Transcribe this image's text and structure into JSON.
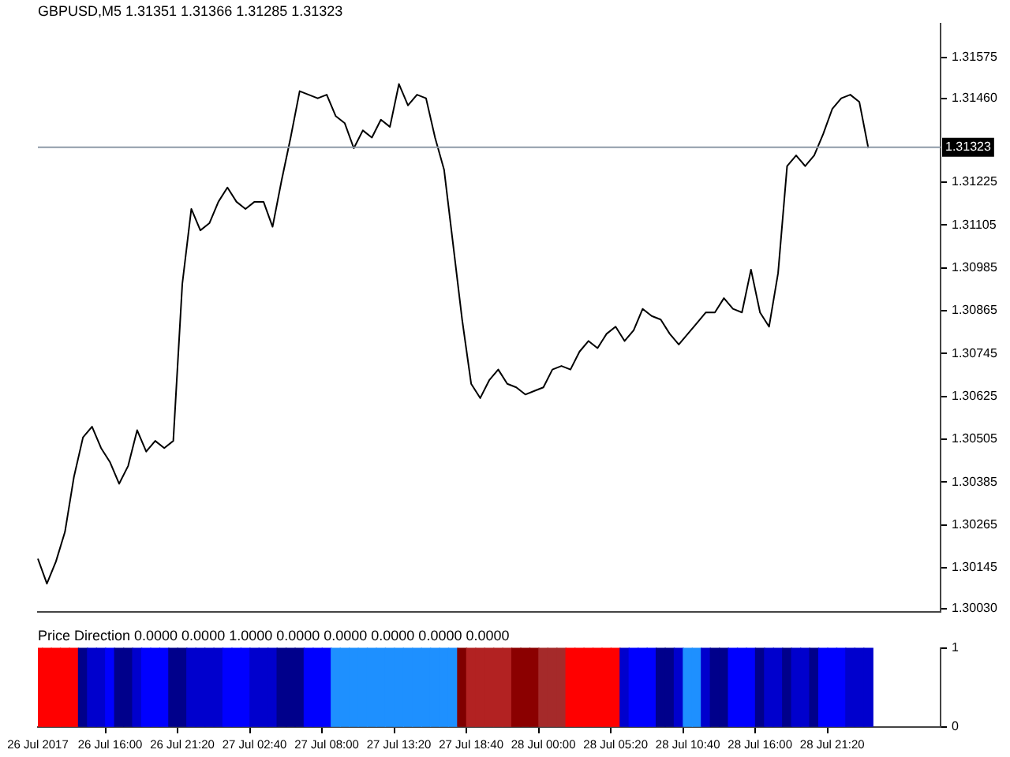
{
  "chart_data": [
    {
      "type": "line",
      "title": "GBPUSD,M5 1.31351 1.31366 1.31285 1.31323",
      "ylim": [
        1.3002,
        1.3167
      ],
      "yticks": [
        1.31575,
        {
          "value": 1.3146,
          "label": "1.31460"
        },
        1.31225,
        1.31105,
        1.30985,
        1.30865,
        1.30745,
        1.30625,
        1.30505,
        1.30385,
        1.30265,
        1.30145,
        {
          "value": 1.3003,
          "label": "1.30030"
        }
      ],
      "grid": false,
      "legend": false,
      "marker": "none",
      "categories": [
        null,
        null,
        null,
        null,
        null,
        null,
        null,
        null,
        null,
        null,
        null,
        null,
        null,
        null,
        null,
        null,
        null,
        null,
        null,
        null,
        null,
        null,
        null,
        null,
        null,
        null,
        null,
        null,
        null,
        null,
        null,
        null,
        null,
        null,
        null,
        null,
        null,
        null,
        null,
        null,
        null,
        null,
        null,
        null,
        null,
        null,
        null,
        null,
        null,
        null,
        null,
        null,
        null,
        null,
        null,
        null,
        null,
        null,
        null,
        null,
        null,
        null,
        null,
        null,
        null,
        null,
        null,
        null,
        null,
        null,
        null,
        null,
        null,
        null,
        null,
        null,
        null,
        null,
        null,
        null,
        null,
        null,
        null,
        null,
        null,
        null,
        null,
        null,
        null,
        null,
        null,
        null,
        null,
        null,
        null,
        null,
        null,
        null,
        null,
        null,
        null
      ],
      "ref_lines": [
        {
          "axis": "y",
          "value": 1.31323,
          "label": "1.31323",
          "color": "#8e9aa8"
        }
      ],
      "series": [
        {
          "color": "#000000",
          "values": [
            1.3017,
            1.301,
            1.30162,
            1.30245,
            1.304,
            1.3051,
            1.3054,
            1.3048,
            1.3044,
            1.3038,
            1.3043,
            1.3053,
            1.3047,
            1.305,
            1.3048,
            1.305,
            1.3094,
            1.3115,
            1.3109,
            1.3111,
            1.3117,
            1.3121,
            1.3117,
            1.3115,
            1.3117,
            1.3117,
            1.311,
            1.3123,
            1.3135,
            1.3148,
            1.3147,
            1.3146,
            1.3147,
            1.3141,
            1.3139,
            1.3132,
            1.3137,
            1.3135,
            1.314,
            1.3138,
            1.315,
            1.3144,
            1.3147,
            1.3146,
            1.3135,
            1.3126,
            1.3105,
            1.3084,
            1.3066,
            1.3062,
            1.3067,
            1.307,
            1.3066,
            1.3065,
            1.3063,
            1.3064,
            1.3065,
            1.307,
            1.3071,
            1.307,
            1.3075,
            1.3078,
            1.3076,
            1.308,
            1.3082,
            1.3078,
            1.3081,
            1.3087,
            1.3085,
            1.3084,
            1.308,
            1.3077,
            1.308,
            1.3083,
            1.3086,
            1.3086,
            1.309,
            1.3087,
            1.3086,
            1.3098,
            1.3086,
            1.3082,
            1.3097,
            1.3127,
            1.313,
            1.3127,
            1.313,
            1.3136,
            1.3143,
            1.3146,
            1.3147,
            1.3145,
            1.3132,
            null,
            null,
            null,
            null,
            null,
            null,
            null,
            null
          ]
        }
      ]
    },
    {
      "type": "bar",
      "title": "Price Direction 0.0000 0.0000 1.0000 0.0000 0.0000 0.0000 0.0000 0.0000",
      "ylim": [
        0,
        1
      ],
      "yticks": [
        0,
        1
      ],
      "grid": false,
      "legend": false,
      "categories": [
        "26 Jul 2017",
        null,
        null,
        null,
        null,
        null,
        null,
        null,
        "26 Jul 16:00",
        null,
        null,
        null,
        null,
        null,
        null,
        null,
        "26 Jul 21:20",
        null,
        null,
        null,
        null,
        null,
        null,
        null,
        "27 Jul 02:40",
        null,
        null,
        null,
        null,
        null,
        null,
        null,
        "27 Jul 08:00",
        null,
        null,
        null,
        null,
        null,
        null,
        null,
        "27 Jul 13:20",
        null,
        null,
        null,
        null,
        null,
        null,
        null,
        "27 Jul 18:40",
        null,
        null,
        null,
        null,
        null,
        null,
        null,
        "28 Jul 00:00",
        null,
        null,
        null,
        null,
        null,
        null,
        null,
        "28 Jul 05:20",
        null,
        null,
        null,
        null,
        null,
        null,
        null,
        "28 Jul 10:40",
        null,
        null,
        null,
        null,
        null,
        null,
        null,
        "28 Jul 16:00",
        null,
        null,
        null,
        null,
        null,
        null,
        null,
        "28 Jul 21:20",
        null,
        null,
        null,
        null,
        null,
        null,
        null,
        null,
        null,
        null,
        null,
        null
      ],
      "values": [
        1,
        1,
        1,
        1,
        1,
        1,
        1,
        1,
        1,
        1,
        1,
        1,
        1,
        1,
        1,
        1,
        1,
        1,
        1,
        1,
        1,
        1,
        1,
        1,
        1,
        1,
        1,
        1,
        1,
        1,
        1,
        1,
        1,
        1,
        1,
        1,
        1,
        1,
        1,
        1,
        1,
        1,
        1,
        1,
        1,
        1,
        1,
        1,
        1,
        1,
        1,
        1,
        1,
        1,
        1,
        1,
        1,
        1,
        1,
        1,
        1,
        1,
        1,
        1,
        1,
        1,
        1,
        1,
        1,
        1,
        1,
        1,
        1,
        1,
        1,
        1,
        1,
        1,
        1,
        1,
        1,
        1,
        1,
        1,
        1,
        1,
        1,
        1,
        1,
        1,
        1,
        1,
        1,
        null,
        null,
        null,
        null,
        null,
        null,
        null,
        null
      ],
      "colors": [
        "#ff0000",
        "#ff0000",
        "#ff0000",
        "#ff0000",
        "#ff0000",
        "#00008b",
        "#0000cd",
        "#0000cd",
        "#0000ff",
        "#00008b",
        "#00008b",
        "#0000cd",
        "#0000ff",
        "#0000ff",
        "#0000ff",
        "#00008b",
        "#00008b",
        "#0000cd",
        "#0000cd",
        "#0000cd",
        "#0000cd",
        "#0000ff",
        "#0000ff",
        "#0000ff",
        "#0000cd",
        "#0000cd",
        "#0000cd",
        "#00008b",
        "#00008b",
        "#00008b",
        "#0000ff",
        "#0000ff",
        "#0000ff",
        "#1e90ff",
        "#1e90ff",
        "#1e90ff",
        "#1e90ff",
        "#1e90ff",
        "#1e90ff",
        "#1e90ff",
        "#1e90ff",
        "#1e90ff",
        "#1e90ff",
        "#1e90ff",
        "#1e90ff",
        "#1e90ff",
        "#1e90ff",
        "#800000",
        "#b22222",
        "#b22222",
        "#b22222",
        "#b22222",
        "#b22222",
        "#8b0000",
        "#8b0000",
        "#8b0000",
        "#a52a2a",
        "#a52a2a",
        "#a52a2a",
        "#ff0000",
        "#ff0000",
        "#ff0000",
        "#ff0000",
        "#ff0000",
        "#ff0000",
        "#0000cd",
        "#0000ff",
        "#0000ff",
        "#0000ff",
        "#00008b",
        "#00008b",
        "#0000cd",
        "#1e90ff",
        "#1e90ff",
        "#0000cd",
        "#00008b",
        "#00008b",
        "#0000ff",
        "#0000ff",
        "#0000ff",
        "#00008b",
        "#0000cd",
        "#0000cd",
        "#00008b",
        "#0000cd",
        "#0000cd",
        "#00008b",
        "#0000ff",
        "#0000ff",
        "#0000ff",
        "#0000cd",
        "#0000cd",
        "#0000cd",
        null,
        null,
        null,
        null,
        null,
        null,
        null,
        null
      ]
    }
  ]
}
